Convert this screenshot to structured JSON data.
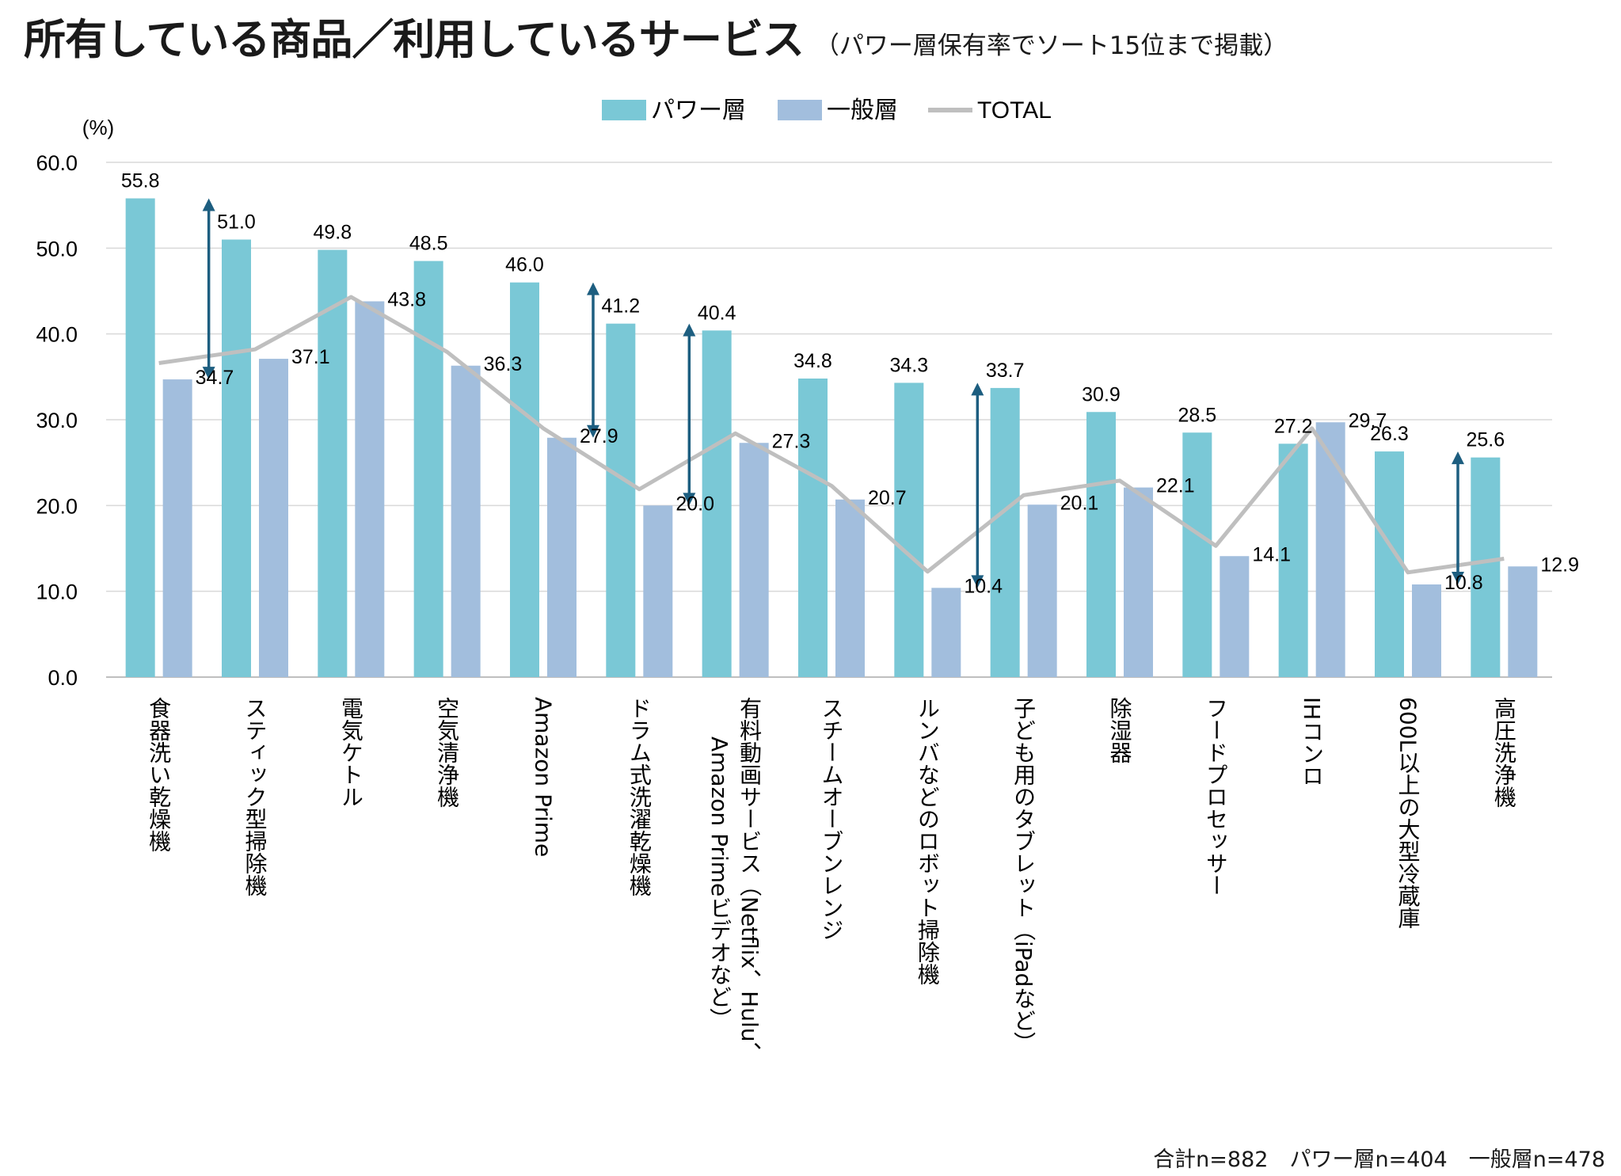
{
  "title": "所有している商品／利用しているサービス",
  "subtitle": "（パワー層保有率でソート15位まで掲載）",
  "footnote": "合計n=882　パワー層n=404　一般層n=478",
  "colors": {
    "power": "#7ac8d6",
    "general": "#a2bedd",
    "total": "#bfbfbf",
    "arrow": "#1d5e80",
    "grid": "#d9d9d9"
  },
  "chart_data": {
    "type": "bar",
    "ylabel": "(%)",
    "ylim": [
      0,
      60
    ],
    "yticks": [
      "0.0",
      "10.0",
      "20.0",
      "30.0",
      "40.0",
      "50.0",
      "60.0"
    ],
    "grid": true,
    "legend_position": "top",
    "categories": [
      "食器洗い乾燥機",
      "スティック型掃除機",
      "電気ケトル",
      "空気清浄機",
      "Amazon Prime",
      "ドラム式洗濯乾燥機",
      "有料動画サービス（Netflix、Hulu、Amazon Primeビデオなど）",
      "スチームオーブンレンジ",
      "ルンバなどのロボット掃除機",
      "子ども用のタブレット（iPadなど）",
      "除湿器",
      "フードプロセッサー",
      "IHコンロ",
      "600L以上の大型冷蔵庫",
      "高圧洗浄機"
    ],
    "series": [
      {
        "name": "パワー層",
        "kind": "bar",
        "values": [
          55.8,
          51.0,
          49.8,
          48.5,
          46.0,
          41.2,
          40.4,
          34.8,
          34.3,
          33.7,
          30.9,
          28.5,
          27.2,
          26.3,
          25.6
        ],
        "labels": [
          "55.8",
          "51.0",
          "49.8",
          "48.5",
          "46.0",
          "41.2",
          "40.4",
          "34.8",
          "34.3",
          "33.7",
          "30.9",
          "28.5",
          "27.2",
          "26.3",
          "25.6"
        ]
      },
      {
        "name": "一般層",
        "kind": "bar",
        "values": [
          34.7,
          37.1,
          43.8,
          36.3,
          27.9,
          20.0,
          27.3,
          20.7,
          10.4,
          20.1,
          22.1,
          14.1,
          29.7,
          10.8,
          12.9
        ],
        "labels": [
          "34.7",
          "37.1",
          "43.8",
          "36.3",
          "27.9",
          "20.0",
          "27.3",
          "20.7",
          "10.4",
          "20.1",
          "22.1",
          "14.1",
          "29.7",
          "10.8",
          "12.9"
        ]
      },
      {
        "name": "TOTAL",
        "kind": "line",
        "values": [
          36.6,
          38.2,
          44.3,
          37.9,
          29.0,
          21.9,
          28.4,
          22.3,
          12.3,
          21.2,
          22.9,
          15.3,
          29.0,
          12.2,
          13.8
        ]
      }
    ],
    "highlight_arrows": [
      0,
      4,
      5,
      8,
      13
    ]
  }
}
